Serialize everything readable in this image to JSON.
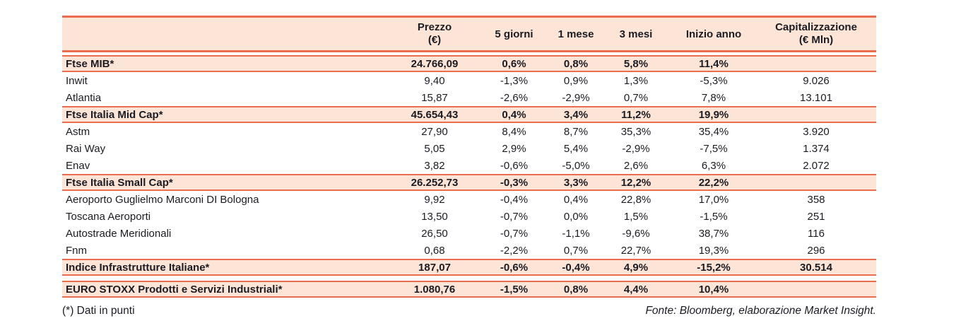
{
  "colors": {
    "band_background": "#fce5d7",
    "rule_line": "#ec6c50",
    "text": "#1b1b23"
  },
  "header": {
    "name": "",
    "prezzo_line1": "Prezzo",
    "prezzo_line2": "(€)",
    "giorni5": "5 giorni",
    "mese1": "1 mese",
    "mesi3": "3 mesi",
    "inizio_anno": "Inizio anno",
    "cap_line1": "Capitalizzazione",
    "cap_line2": "(€ Mln)"
  },
  "rows": [
    {
      "type": "index",
      "name": "Ftse MIB*",
      "prezzo": "24.766,09",
      "g5": "0,6%",
      "m1": "0,8%",
      "m3": "5,8%",
      "inizio": "11,4%",
      "cap": ""
    },
    {
      "type": "stock",
      "name": "Inwit",
      "prezzo": "9,40",
      "g5": "-1,3%",
      "m1": "0,9%",
      "m3": "1,3%",
      "inizio": "-5,3%",
      "cap": "9.026"
    },
    {
      "type": "stock",
      "name": "Atlantia",
      "prezzo": "15,87",
      "g5": "-2,6%",
      "m1": "-2,9%",
      "m3": "0,7%",
      "inizio": "7,8%",
      "cap": "13.101"
    },
    {
      "type": "index",
      "name": "Ftse Italia Mid Cap*",
      "prezzo": "45.654,43",
      "g5": "0,4%",
      "m1": "3,4%",
      "m3": "11,2%",
      "inizio": "19,9%",
      "cap": ""
    },
    {
      "type": "stock",
      "name": "Astm",
      "prezzo": "27,90",
      "g5": "8,4%",
      "m1": "8,7%",
      "m3": "35,3%",
      "inizio": "35,4%",
      "cap": "3.920"
    },
    {
      "type": "stock",
      "name": "Rai Way",
      "prezzo": "5,05",
      "g5": "2,9%",
      "m1": "5,4%",
      "m3": "-2,9%",
      "inizio": "-7,5%",
      "cap": "1.374"
    },
    {
      "type": "stock",
      "name": "Enav",
      "prezzo": "3,82",
      "g5": "-0,6%",
      "m1": "-5,0%",
      "m3": "2,6%",
      "inizio": "6,3%",
      "cap": "2.072"
    },
    {
      "type": "index",
      "name": "Ftse Italia Small Cap*",
      "prezzo": "26.252,73",
      "g5": "-0,3%",
      "m1": "3,3%",
      "m3": "12,2%",
      "inizio": "22,2%",
      "cap": ""
    },
    {
      "type": "stock",
      "name": "Aeroporto Guglielmo Marconi DI Bologna",
      "prezzo": "9,92",
      "g5": "-0,4%",
      "m1": "0,4%",
      "m3": "22,8%",
      "inizio": "17,0%",
      "cap": "358"
    },
    {
      "type": "stock",
      "name": "Toscana Aeroporti",
      "prezzo": "13,50",
      "g5": "-0,7%",
      "m1": "0,0%",
      "m3": "1,5%",
      "inizio": "-1,5%",
      "cap": "251"
    },
    {
      "type": "stock",
      "name": "Autostrade Meridionali",
      "prezzo": "26,50",
      "g5": "-0,7%",
      "m1": "-1,1%",
      "m3": "-9,6%",
      "inizio": "38,7%",
      "cap": "116"
    },
    {
      "type": "stock",
      "name": "Fnm",
      "prezzo": "0,68",
      "g5": "-2,2%",
      "m1": "0,7%",
      "m3": "22,7%",
      "inizio": "19,3%",
      "cap": "296"
    },
    {
      "type": "index",
      "name": "Indice Infrastrutture Italiane*",
      "prezzo": "187,07",
      "g5": "-0,6%",
      "m1": "-0,4%",
      "m3": "4,9%",
      "inizio": "-15,2%",
      "cap": "30.514"
    },
    {
      "type": "index",
      "gap_before": true,
      "name": "EURO STOXX Prodotti e Servizi Industriali*",
      "prezzo": "1.080,76",
      "g5": "-1,5%",
      "m1": "0,8%",
      "m3": "4,4%",
      "inizio": "10,4%",
      "cap": ""
    }
  ],
  "footer": {
    "note": "(*) Dati in punti",
    "source": "Fonte: Bloomberg, elaborazione Market Insight."
  }
}
